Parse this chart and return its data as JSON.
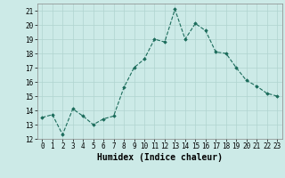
{
  "x": [
    0,
    1,
    2,
    3,
    4,
    5,
    6,
    7,
    8,
    9,
    10,
    11,
    12,
    13,
    14,
    15,
    16,
    17,
    18,
    19,
    20,
    21,
    22,
    23
  ],
  "y": [
    13.5,
    13.7,
    12.3,
    14.1,
    13.6,
    13.0,
    13.4,
    13.6,
    15.6,
    17.0,
    17.6,
    19.0,
    18.8,
    21.1,
    19.0,
    20.1,
    19.6,
    18.1,
    18.0,
    17.0,
    16.1,
    15.7,
    15.2,
    15.0
  ],
  "xlabel": "Humidex (Indice chaleur)",
  "ylim": [
    12,
    21.5
  ],
  "xlim": [
    -0.5,
    23.5
  ],
  "yticks": [
    12,
    13,
    14,
    15,
    16,
    17,
    18,
    19,
    20,
    21
  ],
  "xticks": [
    0,
    1,
    2,
    3,
    4,
    5,
    6,
    7,
    8,
    9,
    10,
    11,
    12,
    13,
    14,
    15,
    16,
    17,
    18,
    19,
    20,
    21,
    22,
    23
  ],
  "line_color": "#1a6b5a",
  "marker": "D",
  "marker_size": 1.8,
  "bg_color": "#cceae7",
  "grid_color": "#b0d4d0",
  "xlabel_fontsize": 7,
  "tick_fontsize": 5.5
}
